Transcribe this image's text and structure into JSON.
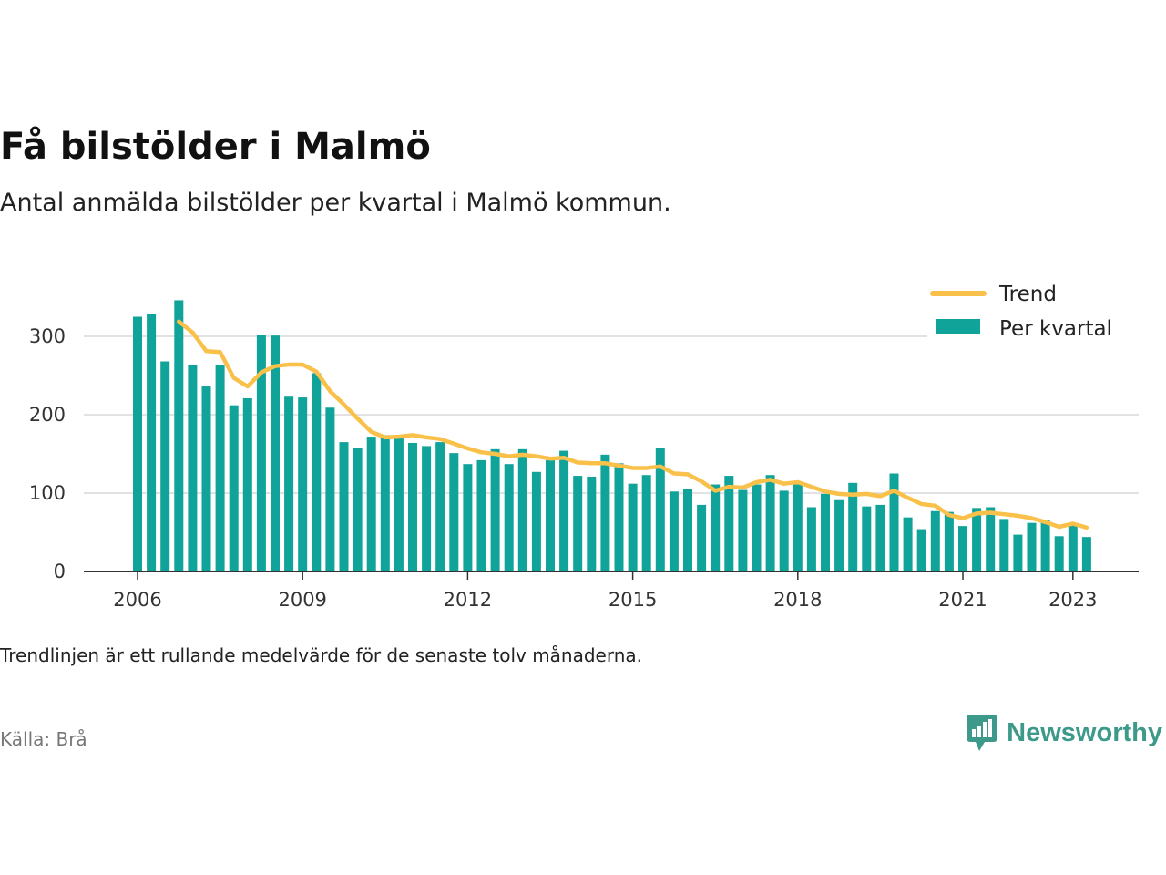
{
  "header": {
    "title": "Få bilstölder i Malmö",
    "subtitle": "Antal anmälda bilstölder per kvartal i Malmö kommun."
  },
  "footer": {
    "note": "Trendlinjen är ett rullande medelvärde för de senaste tolv månaderna.",
    "source": "Källa: Brå",
    "brand": "Newsworthy"
  },
  "colors": {
    "bars": "#0fa39a",
    "trend": "#f9c04a",
    "grid": "#d9d9d9",
    "axis": "#333333",
    "brand": "#3d9a8b"
  },
  "chart_data": {
    "type": "bar",
    "ylim": [
      0,
      350
    ],
    "yticks": [
      0,
      100,
      200,
      300
    ],
    "xticks": [
      "2006",
      "2009",
      "2012",
      "2015",
      "2018",
      "2021",
      "2023"
    ],
    "x_start": "2006 Q1",
    "grid": true,
    "legend": {
      "position": "top-right",
      "entries": [
        "Trend",
        "Per kvartal"
      ]
    },
    "series": [
      {
        "name": "Per kvartal",
        "type": "bar",
        "values": [
          325,
          329,
          268,
          346,
          264,
          236,
          264,
          212,
          221,
          302,
          301,
          223,
          222,
          253,
          209,
          165,
          157,
          172,
          174,
          173,
          164,
          160,
          165,
          151,
          137,
          142,
          156,
          137,
          156,
          127,
          142,
          154,
          122,
          121,
          149,
          138,
          112,
          123,
          158,
          102,
          105,
          85,
          111,
          122,
          104,
          111,
          123,
          103,
          111,
          82,
          99,
          91,
          113,
          83,
          85,
          125,
          69,
          54,
          77,
          76,
          58,
          81,
          82,
          67,
          47,
          62,
          65,
          45,
          61,
          44
        ]
      },
      {
        "name": "Trend",
        "type": "line",
        "values": [
          null,
          null,
          null,
          319,
          305,
          281,
          280,
          247,
          236,
          254,
          262,
          264,
          264,
          255,
          230,
          213,
          195,
          178,
          171,
          172,
          174,
          171,
          169,
          163,
          157,
          152,
          150,
          147,
          149,
          147,
          144,
          145,
          139,
          138,
          138,
          135,
          132,
          132,
          134,
          125,
          124,
          115,
          103,
          108,
          107,
          114,
          117,
          112,
          114,
          108,
          102,
          99,
          98,
          99,
          96,
          103,
          94,
          86,
          84,
          72,
          68,
          74,
          75,
          73,
          71,
          68,
          63,
          57,
          61,
          56
        ]
      }
    ]
  }
}
